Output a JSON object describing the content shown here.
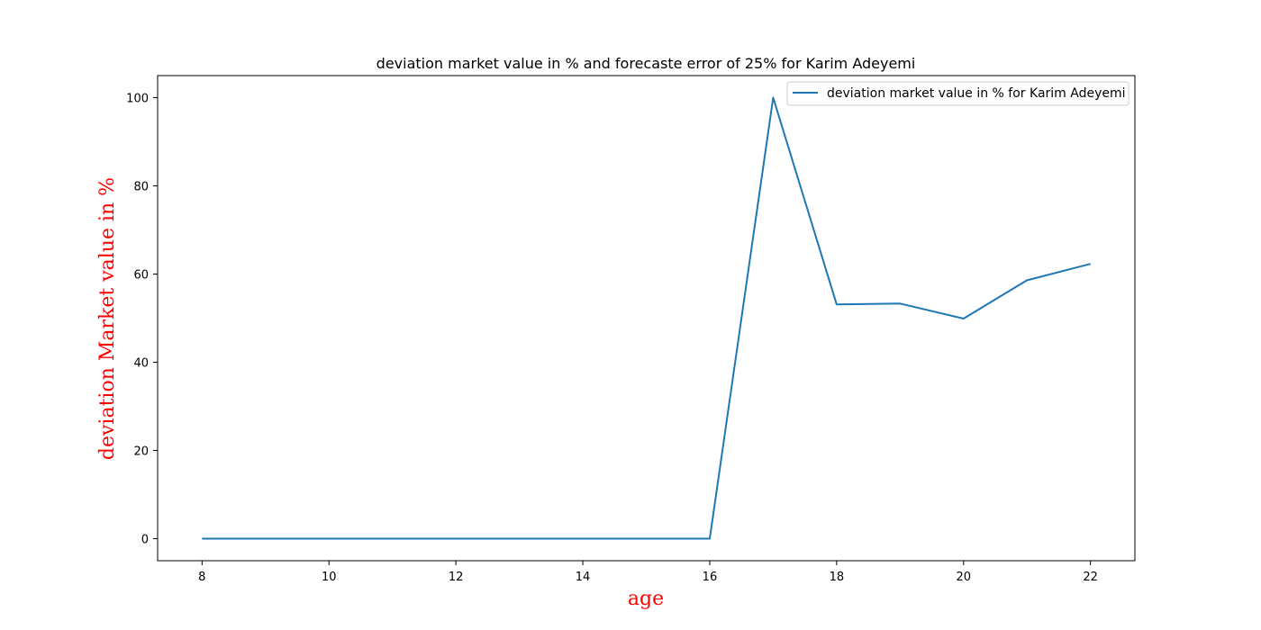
{
  "chart_data": {
    "type": "line",
    "title": "deviation market value in % and forecaste error of 25% for Karim Adeyemi",
    "xlabel": "age",
    "ylabel": "deviation Market value in %",
    "axis_label_color": "#ff0000",
    "xlim": [
      7.3,
      22.7
    ],
    "ylim": [
      -5,
      105
    ],
    "xticks": [
      8,
      10,
      12,
      14,
      16,
      18,
      20,
      22
    ],
    "yticks": [
      0,
      20,
      40,
      60,
      80,
      100
    ],
    "grid": false,
    "legend_placement": "top-right",
    "series": [
      {
        "name": "deviation market value in % for Karim Adeyemi",
        "color": "#1f77b4",
        "x": [
          8,
          9,
          10,
          11,
          12,
          13,
          14,
          15,
          16,
          17,
          18,
          19,
          20,
          21,
          22
        ],
        "y": [
          0,
          0,
          0,
          0,
          0,
          0,
          0,
          0,
          0,
          100,
          53.1,
          53.3,
          49.9,
          58.6,
          62.3
        ]
      }
    ]
  }
}
